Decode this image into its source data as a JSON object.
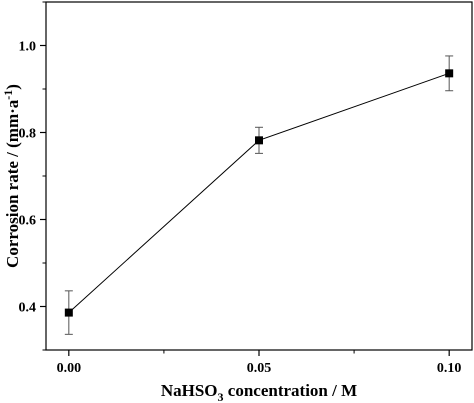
{
  "chart_data": {
    "type": "line",
    "x": [
      0.0,
      0.05,
      0.1
    ],
    "values": [
      0.386,
      0.782,
      0.936
    ],
    "errors": [
      0.05,
      0.03,
      0.04
    ],
    "x_tick_labels": [
      "0.00",
      "0.05",
      "0.10"
    ],
    "y_tick_labels": [
      "0.4",
      "0.6",
      "0.8",
      "1.0"
    ],
    "y_ticks": [
      0.4,
      0.6,
      0.8,
      1.0
    ],
    "xlabel": {
      "pre": "NaHSO",
      "sub": "3",
      "post": " concentration / M"
    },
    "ylabel": {
      "pre": "Corrosion rate / (mm·a",
      "sup": "-1",
      "post": ")"
    },
    "xlim": [
      -0.006,
      0.106
    ],
    "ylim": [
      0.3,
      1.1
    ],
    "grid": false,
    "marker": "square",
    "line_color": "#000000",
    "marker_color": "#000000",
    "error_color": "#555555"
  }
}
